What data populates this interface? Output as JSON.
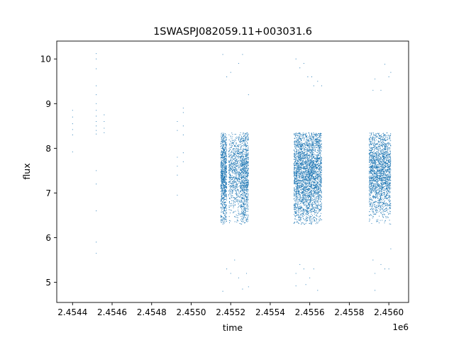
{
  "chart_data": {
    "type": "scatter",
    "title": "1SWASPJ082059.11+003031.6",
    "xlabel": "time",
    "ylabel": "flux",
    "x_offset_label": "1e6",
    "xlim": [
      2.45432,
      2.4561
    ],
    "ylim": [
      4.55,
      10.4
    ],
    "x_ticks": [
      2.4544,
      2.4546,
      2.4548,
      2.455,
      2.4552,
      2.4554,
      2.4556,
      2.4558,
      2.456
    ],
    "x_tick_labels": [
      "2.4544",
      "2.4546",
      "2.4548",
      "2.4550",
      "2.4552",
      "2.4554",
      "2.4556",
      "2.4558",
      "2.4560"
    ],
    "y_ticks": [
      5,
      6,
      7,
      8,
      9,
      10
    ],
    "y_tick_labels": [
      "5",
      "6",
      "7",
      "8",
      "9",
      "10"
    ],
    "grid": false,
    "marker_color": "#1f77b4",
    "series": [
      {
        "points": [
          [
            2.4544,
            8.85
          ],
          [
            2.4544,
            8.7
          ],
          [
            2.4544,
            8.55
          ],
          [
            2.4544,
            8.42
          ],
          [
            2.4544,
            8.3
          ],
          [
            2.4544,
            7.92
          ],
          [
            2.45452,
            10.12
          ],
          [
            2.45452,
            10.0
          ],
          [
            2.45452,
            9.78
          ],
          [
            2.45452,
            9.4
          ],
          [
            2.45452,
            9.2
          ],
          [
            2.45452,
            9.0
          ],
          [
            2.45452,
            8.85
          ],
          [
            2.45452,
            8.72
          ],
          [
            2.45452,
            8.6
          ],
          [
            2.45452,
            8.5
          ],
          [
            2.45452,
            8.4
          ],
          [
            2.45452,
            8.32
          ],
          [
            2.45452,
            7.5
          ],
          [
            2.45452,
            7.2
          ],
          [
            2.45452,
            6.6
          ],
          [
            2.45452,
            5.9
          ],
          [
            2.45452,
            5.65
          ],
          [
            2.45456,
            8.75
          ],
          [
            2.45456,
            8.6
          ],
          [
            2.45456,
            8.45
          ],
          [
            2.45456,
            8.35
          ],
          [
            2.45493,
            8.6
          ],
          [
            2.45493,
            8.4
          ],
          [
            2.45493,
            7.8
          ],
          [
            2.45493,
            7.6
          ],
          [
            2.45493,
            7.4
          ],
          [
            2.45493,
            6.95
          ],
          [
            2.45496,
            8.9
          ],
          [
            2.45496,
            8.8
          ],
          [
            2.45496,
            8.5
          ],
          [
            2.45496,
            8.3
          ],
          [
            2.45496,
            7.9
          ],
          [
            2.45496,
            7.7
          ],
          [
            2.45516,
            10.1
          ],
          [
            2.45516,
            4.8
          ],
          [
            2.45518,
            9.6
          ],
          [
            2.45518,
            5.3
          ],
          [
            2.4552,
            9.7
          ],
          [
            2.4552,
            5.2
          ],
          [
            2.45522,
            5.5
          ],
          [
            2.45524,
            9.9
          ],
          [
            2.45524,
            5.1
          ],
          [
            2.45526,
            10.1
          ],
          [
            2.45526,
            4.85
          ],
          [
            2.45528,
            5.2
          ],
          [
            2.45529,
            9.2
          ],
          [
            2.45529,
            4.9
          ],
          [
            2.45553,
            10.0
          ],
          [
            2.45553,
            5.2
          ],
          [
            2.45553,
            4.92
          ],
          [
            2.45555,
            9.8
          ],
          [
            2.45555,
            5.4
          ],
          [
            2.45557,
            9.9
          ],
          [
            2.45557,
            5.3
          ],
          [
            2.45558,
            4.95
          ],
          [
            2.45559,
            9.6
          ],
          [
            2.4556,
            5.1
          ],
          [
            2.45561,
            9.6
          ],
          [
            2.45562,
            9.4
          ],
          [
            2.45562,
            5.3
          ],
          [
            2.45564,
            9.5
          ],
          [
            2.45564,
            4.82
          ],
          [
            2.45566,
            9.4
          ],
          [
            2.45592,
            9.3
          ],
          [
            2.45592,
            5.5
          ],
          [
            2.45593,
            9.55
          ],
          [
            2.45593,
            5.2
          ],
          [
            2.45593,
            4.82
          ],
          [
            2.45596,
            9.3
          ],
          [
            2.45596,
            5.4
          ],
          [
            2.45598,
            9.88
          ],
          [
            2.45598,
            5.3
          ],
          [
            2.456,
            9.6
          ],
          [
            2.456,
            5.3
          ],
          [
            2.45601,
            9.7
          ],
          [
            2.45601,
            5.75
          ]
        ],
        "clusters": [
          {
            "x_range": [
              2.45515,
              2.45518
            ],
            "y_center": 7.35,
            "y_spread": 0.55,
            "count": 900
          },
          {
            "x_range": [
              2.45519,
              2.45525
            ],
            "y_center": 7.45,
            "y_spread": 0.45,
            "count": 700
          },
          {
            "x_range": [
              2.45525,
              2.45529
            ],
            "y_center": 7.35,
            "y_spread": 0.55,
            "count": 900
          },
          {
            "x_range": [
              2.45552,
              2.45559
            ],
            "y_center": 7.4,
            "y_spread": 0.55,
            "count": 1500
          },
          {
            "x_range": [
              2.45559,
              2.45566
            ],
            "y_center": 7.4,
            "y_spread": 0.55,
            "count": 1500
          },
          {
            "x_range": [
              2.4559,
              2.45595
            ],
            "y_center": 7.45,
            "y_spread": 0.5,
            "count": 900
          },
          {
            "x_range": [
              2.45595,
              2.45601
            ],
            "y_center": 7.45,
            "y_spread": 0.5,
            "count": 1100
          }
        ]
      }
    ]
  }
}
